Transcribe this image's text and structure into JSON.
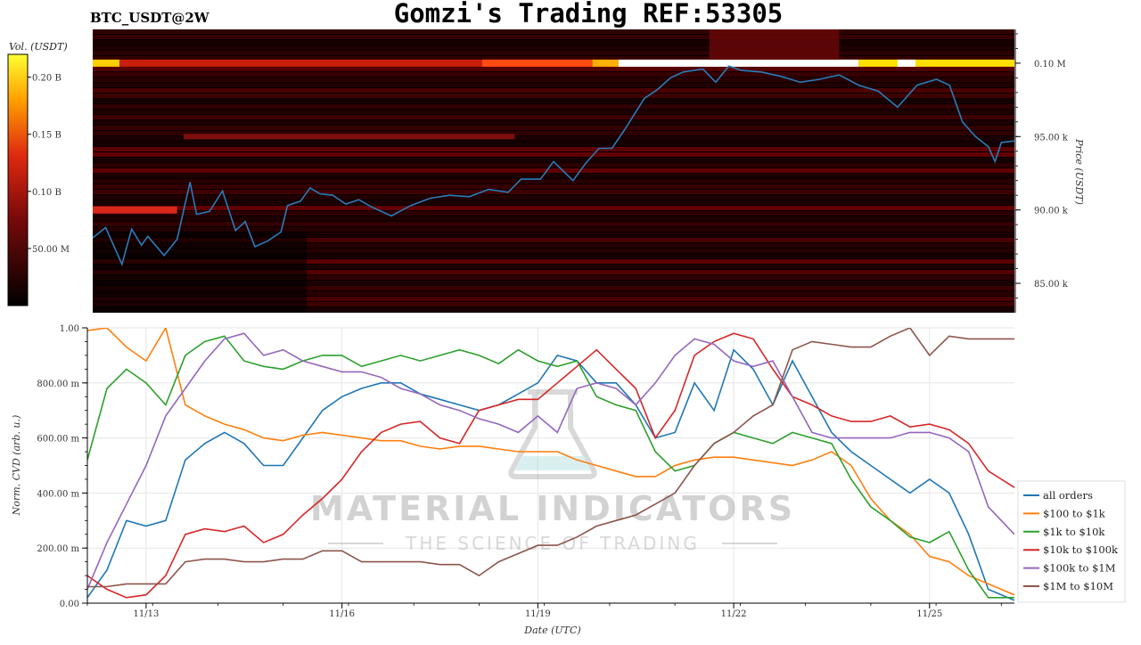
{
  "header": {
    "symbol": "BTC_USDT@2W",
    "title": "Gomzi's Trading REF:53305"
  },
  "colorbar": {
    "label": "Vol. (USDT)",
    "ticks": [
      "0.20 B",
      "0.15 B",
      "0.10 B",
      "50.00 M"
    ],
    "tick_values": [
      0.2,
      0.15,
      0.1,
      0.05
    ],
    "max": 0.22
  },
  "watermark": {
    "brand": "MATERIAL INDICATORS",
    "tagline": "THE SCIENCE OF TRADING"
  },
  "colors": {
    "heat_low": "#000000",
    "heat_mid": "#b01010",
    "heat_high": "#ffea00",
    "heat_top": "#ffffff",
    "price_line": "#2b7bba",
    "all_orders": "#1f77b4",
    "s100": "#ff7f0e",
    "s1k": "#2ca02c",
    "s10k": "#d62728",
    "s100k": "#9467bd",
    "s1m": "#8c564b"
  },
  "chart_data": [
    {
      "type": "heatmap",
      "title": "",
      "ylabel": "Price (USDT)",
      "ytick_labels": [
        "0.10 M",
        "95.00 k",
        "90.00 k",
        "85.00 k"
      ],
      "ytick_values": [
        100000,
        95000,
        90000,
        85000
      ],
      "ylim": [
        83000,
        102300
      ],
      "xlim": [
        0,
        14.2
      ],
      "bright_levels": [
        {
          "price": 100000,
          "volume": 0.13
        },
        {
          "price": 90000,
          "volume": 0.09
        },
        {
          "price": 95000,
          "volume": 0.07
        }
      ],
      "series": [
        {
          "name": "",
          "x": [
            0,
            0.2,
            0.45,
            0.6,
            0.75,
            0.85,
            1.1,
            1.3,
            1.5,
            1.6,
            1.8,
            2.0,
            2.2,
            2.35,
            2.5,
            2.7,
            2.9,
            3.0,
            3.2,
            3.35,
            3.5,
            3.7,
            3.9,
            4.1,
            4.3,
            4.6,
            4.9,
            5.2,
            5.5,
            5.8,
            6.1,
            6.4,
            6.6,
            6.9,
            7.1,
            7.4,
            7.6,
            7.8,
            8.0,
            8.2,
            8.5,
            8.7,
            8.9,
            9.1,
            9.4,
            9.6,
            9.8,
            10.0,
            10.3,
            10.6,
            10.9,
            11.2,
            11.5,
            11.8,
            12.1,
            12.4,
            12.7,
            13.0,
            13.2,
            13.4,
            13.6,
            13.8,
            13.9,
            14.0,
            14.2
          ],
          "y": [
            88100,
            88800,
            86300,
            88700,
            87600,
            88200,
            86900,
            88000,
            91900,
            89700,
            89900,
            91300,
            88600,
            89200,
            87500,
            87900,
            88500,
            90300,
            90600,
            91500,
            91100,
            91000,
            90400,
            90700,
            90200,
            89600,
            90300,
            90800,
            91000,
            90900,
            91400,
            91200,
            92100,
            92100,
            93300,
            92000,
            93200,
            94200,
            94200,
            95500,
            97600,
            98200,
            99000,
            99400,
            99600,
            98700,
            99800,
            99500,
            99400,
            99100,
            98700,
            98900,
            99200,
            98500,
            98100,
            97000,
            98500,
            98900,
            98500,
            96000,
            95000,
            94300,
            93300,
            94600,
            94700
          ]
        }
      ]
    },
    {
      "type": "line",
      "title": "",
      "xlabel": "Date (UTC)",
      "ylabel": "Norm. CVD (arb. u.)",
      "ylim": [
        0,
        1
      ],
      "xlim": [
        0,
        14.2
      ],
      "ytick_labels": [
        "1.00",
        "800.00 m",
        "600.00 m",
        "400.00 m",
        "200.00 m",
        "0.00"
      ],
      "ytick_values": [
        1.0,
        0.8,
        0.6,
        0.4,
        0.2,
        0.0
      ],
      "xtick_labels": [
        "11/13",
        "11/16",
        "11/19",
        "11/22",
        "11/25"
      ],
      "xtick_values": [
        0.9,
        3.9,
        6.9,
        9.9,
        12.9
      ],
      "grid": true,
      "legend_position": "right",
      "x": [
        0,
        0.3,
        0.6,
        0.9,
        1.2,
        1.5,
        1.8,
        2.1,
        2.4,
        2.7,
        3.0,
        3.3,
        3.6,
        3.9,
        4.2,
        4.5,
        4.8,
        5.1,
        5.4,
        5.7,
        6.0,
        6.3,
        6.6,
        6.9,
        7.2,
        7.5,
        7.8,
        8.1,
        8.4,
        8.7,
        9.0,
        9.3,
        9.6,
        9.9,
        10.2,
        10.5,
        10.8,
        11.1,
        11.4,
        11.7,
        12.0,
        12.3,
        12.6,
        12.9,
        13.2,
        13.5,
        13.8,
        14.2
      ],
      "series": [
        {
          "name": "all orders",
          "values": [
            0.02,
            0.12,
            0.3,
            0.28,
            0.3,
            0.52,
            0.58,
            0.62,
            0.58,
            0.5,
            0.5,
            0.6,
            0.7,
            0.75,
            0.78,
            0.8,
            0.8,
            0.76,
            0.74,
            0.72,
            0.7,
            0.72,
            0.76,
            0.8,
            0.9,
            0.88,
            0.8,
            0.8,
            0.72,
            0.6,
            0.62,
            0.8,
            0.7,
            0.92,
            0.85,
            0.72,
            0.88,
            0.75,
            0.62,
            0.55,
            0.5,
            0.45,
            0.4,
            0.45,
            0.4,
            0.25,
            0.05,
            0.01
          ]
        },
        {
          "name": "$100 to $1k",
          "values": [
            0.99,
            1.0,
            0.93,
            0.88,
            1.0,
            0.72,
            0.68,
            0.65,
            0.63,
            0.6,
            0.59,
            0.61,
            0.62,
            0.61,
            0.6,
            0.59,
            0.59,
            0.57,
            0.56,
            0.57,
            0.57,
            0.56,
            0.55,
            0.55,
            0.55,
            0.52,
            0.5,
            0.48,
            0.46,
            0.46,
            0.5,
            0.52,
            0.53,
            0.53,
            0.52,
            0.51,
            0.5,
            0.52,
            0.55,
            0.5,
            0.38,
            0.3,
            0.25,
            0.17,
            0.15,
            0.1,
            0.07,
            0.03
          ]
        },
        {
          "name": "$1k to $10k",
          "values": [
            0.52,
            0.78,
            0.85,
            0.8,
            0.72,
            0.9,
            0.95,
            0.97,
            0.88,
            0.86,
            0.85,
            0.88,
            0.9,
            0.9,
            0.86,
            0.88,
            0.9,
            0.88,
            0.9,
            0.92,
            0.9,
            0.87,
            0.92,
            0.88,
            0.86,
            0.88,
            0.75,
            0.72,
            0.7,
            0.55,
            0.48,
            0.5,
            0.58,
            0.62,
            0.6,
            0.58,
            0.62,
            0.6,
            0.58,
            0.45,
            0.35,
            0.3,
            0.24,
            0.22,
            0.26,
            0.12,
            0.02,
            0.02
          ]
        },
        {
          "name": "$10k to $100k",
          "values": [
            0.1,
            0.05,
            0.02,
            0.03,
            0.1,
            0.25,
            0.27,
            0.26,
            0.28,
            0.22,
            0.25,
            0.32,
            0.38,
            0.45,
            0.55,
            0.62,
            0.65,
            0.66,
            0.6,
            0.58,
            0.7,
            0.72,
            0.74,
            0.74,
            0.8,
            0.86,
            0.92,
            0.85,
            0.78,
            0.6,
            0.7,
            0.9,
            0.95,
            0.98,
            0.96,
            0.85,
            0.75,
            0.72,
            0.68,
            0.66,
            0.66,
            0.68,
            0.64,
            0.65,
            0.63,
            0.58,
            0.48,
            0.42
          ]
        },
        {
          "name": "$100k to $1M",
          "values": [
            0.05,
            0.22,
            0.36,
            0.5,
            0.68,
            0.78,
            0.88,
            0.96,
            0.98,
            0.9,
            0.92,
            0.88,
            0.86,
            0.84,
            0.84,
            0.82,
            0.78,
            0.76,
            0.72,
            0.7,
            0.67,
            0.65,
            0.62,
            0.68,
            0.62,
            0.78,
            0.8,
            0.78,
            0.72,
            0.8,
            0.9,
            0.96,
            0.94,
            0.88,
            0.86,
            0.88,
            0.75,
            0.62,
            0.6,
            0.6,
            0.6,
            0.6,
            0.62,
            0.62,
            0.6,
            0.55,
            0.35,
            0.25
          ]
        },
        {
          "name": "$1M to $10M",
          "values": [
            0.06,
            0.06,
            0.07,
            0.07,
            0.07,
            0.15,
            0.16,
            0.16,
            0.15,
            0.15,
            0.16,
            0.16,
            0.19,
            0.19,
            0.15,
            0.15,
            0.15,
            0.15,
            0.14,
            0.14,
            0.1,
            0.15,
            0.18,
            0.21,
            0.21,
            0.24,
            0.28,
            0.3,
            0.32,
            0.36,
            0.4,
            0.5,
            0.58,
            0.62,
            0.68,
            0.72,
            0.92,
            0.95,
            0.94,
            0.93,
            0.93,
            0.97,
            1.0,
            0.9,
            0.97,
            0.96,
            0.96,
            0.96
          ]
        }
      ]
    }
  ]
}
